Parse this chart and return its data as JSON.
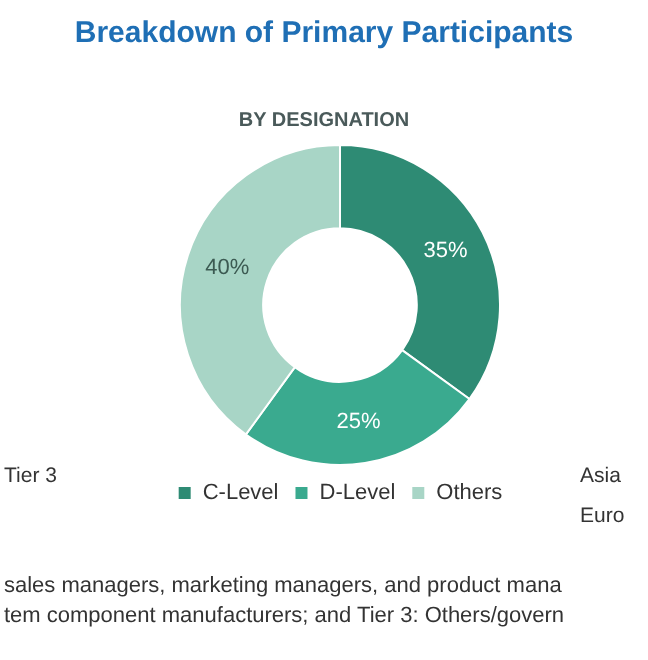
{
  "chart_data": {
    "type": "donut",
    "title": "Breakdown of Primary Participants",
    "subtitle": "BY DESIGNATION",
    "categories": [
      "C-Level",
      "D-Level",
      "Others"
    ],
    "values": [
      35,
      25,
      40
    ],
    "colors": [
      "#2e8b74",
      "#3aaa8f",
      "#a8d5c6"
    ],
    "value_labels": [
      "35%",
      "25%",
      "40%"
    ],
    "legend": "bottom",
    "annotations": [
      "Tier 3",
      "Asia",
      "Euro",
      "sales managers, marketing managers, and product mana",
      "tem component manufacturers; and Tier 3: Others/govern"
    ]
  }
}
